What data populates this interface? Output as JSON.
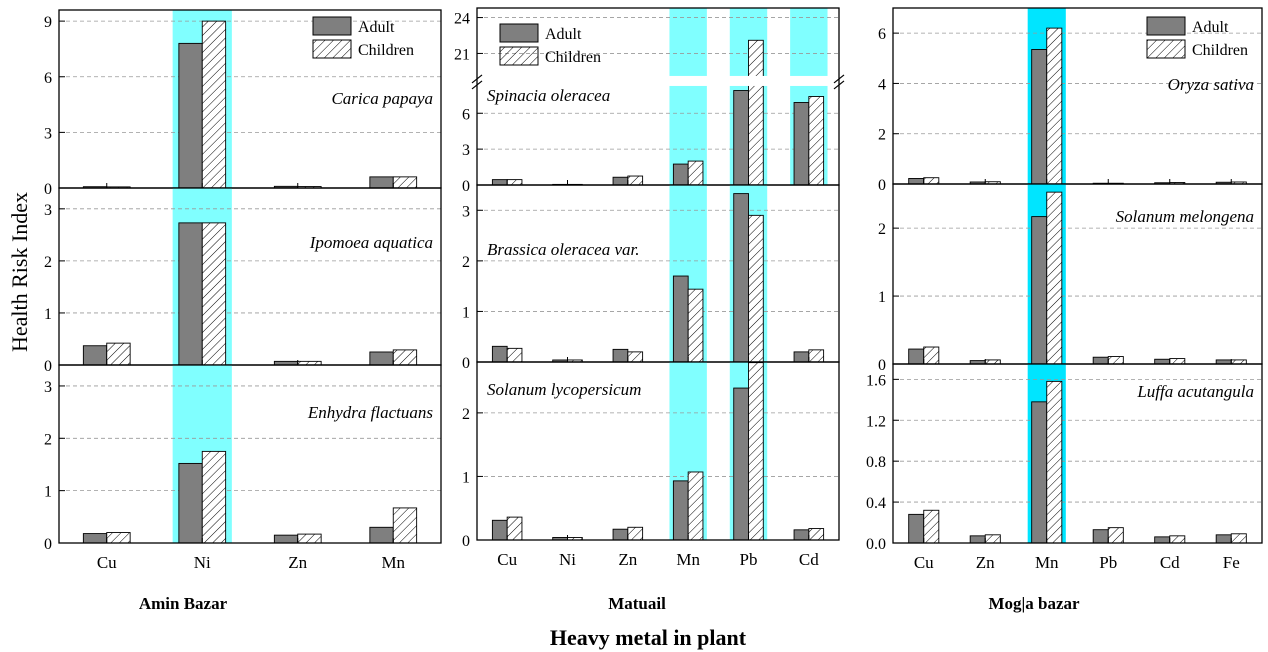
{
  "figure": {
    "ylabel": "Health Risk Index",
    "xlabel": "Heavy metal in plant",
    "legend": [
      "Adult",
      "Children"
    ]
  },
  "colors": {
    "adult": "#7f7f7f",
    "children_hatch": "#000000",
    "highlight": "#80ffff",
    "highlight_strong": "#00e5ff",
    "grid": "#999999"
  },
  "chart_data": [
    {
      "type": "bar",
      "group": "Amin Bazar",
      "plant": "Carica papaya",
      "categories": [
        "Cu",
        "Ni",
        "Zn",
        "Mn"
      ],
      "series": [
        {
          "name": "Adult",
          "values": [
            0.07,
            7.8,
            0.09,
            0.6
          ]
        },
        {
          "name": "Children",
          "values": [
            0.06,
            9.0,
            0.08,
            0.6
          ]
        }
      ],
      "highlight": [
        "Ni"
      ],
      "ylim": [
        0,
        9.6
      ],
      "yticks": [
        0,
        3,
        6,
        9
      ],
      "legend": true
    },
    {
      "type": "bar",
      "group": "Amin Bazar",
      "plant": "Ipomoea aquatica",
      "categories": [
        "Cu",
        "Ni",
        "Zn",
        "Mn"
      ],
      "series": [
        {
          "name": "Adult",
          "values": [
            0.37,
            2.73,
            0.07,
            0.25
          ]
        },
        {
          "name": "Children",
          "values": [
            0.42,
            2.73,
            0.07,
            0.29
          ]
        }
      ],
      "highlight": [
        "Ni"
      ],
      "ylim": [
        0,
        3.4
      ],
      "yticks": [
        0,
        1,
        2,
        3
      ]
    },
    {
      "type": "bar",
      "group": "Amin Bazar",
      "plant": "Enhydra flactuans",
      "categories": [
        "Cu",
        "Ni",
        "Zn",
        "Mn"
      ],
      "series": [
        {
          "name": "Adult",
          "values": [
            0.18,
            1.52,
            0.15,
            0.3
          ]
        },
        {
          "name": "Children",
          "values": [
            0.2,
            1.75,
            0.17,
            0.67
          ]
        }
      ],
      "highlight": [
        "Ni"
      ],
      "ylim": [
        0,
        3.4
      ],
      "yticks": [
        0,
        1,
        2,
        3
      ]
    },
    {
      "type": "bar",
      "group": "Matuail",
      "plant": "Spinacia oleracea",
      "categories": [
        "Cu",
        "Ni",
        "Zn",
        "Mn",
        "Pb",
        "Cd"
      ],
      "series": [
        {
          "name": "Adult",
          "values": [
            0.45,
            0.05,
            0.65,
            1.75,
            7.9,
            6.9
          ]
        },
        {
          "name": "Children",
          "values": [
            0.45,
            0.05,
            0.75,
            2.0,
            22.1,
            7.4
          ]
        }
      ],
      "highlight": [
        "Mn",
        "Pb",
        "Cd"
      ],
      "ylim": [
        0,
        24.8
      ],
      "yticks": [
        0,
        3,
        6,
        21,
        24
      ],
      "axis_break": [
        8.2,
        19.2
      ],
      "legend": true
    },
    {
      "type": "bar",
      "group": "Matuail",
      "plant": "Brassica oleracea var.",
      "categories": [
        "Cu",
        "Ni",
        "Zn",
        "Mn",
        "Pb",
        "Cd"
      ],
      "series": [
        {
          "name": "Adult",
          "values": [
            0.31,
            0.04,
            0.25,
            1.7,
            3.33,
            0.2
          ]
        },
        {
          "name": "Children",
          "values": [
            0.27,
            0.04,
            0.2,
            1.44,
            2.9,
            0.24
          ]
        }
      ],
      "highlight": [
        "Mn",
        "Pb"
      ],
      "ylim": [
        0,
        3.5
      ],
      "yticks": [
        0,
        1,
        2,
        3
      ]
    },
    {
      "type": "bar",
      "group": "Matuail",
      "plant": "Solanum lycopersicum",
      "categories": [
        "Cu",
        "Ni",
        "Zn",
        "Mn",
        "Pb",
        "Cd"
      ],
      "series": [
        {
          "name": "Adult",
          "values": [
            0.31,
            0.04,
            0.17,
            0.93,
            2.39,
            0.16
          ]
        },
        {
          "name": "Children",
          "values": [
            0.36,
            0.04,
            0.2,
            1.07,
            2.79,
            0.18
          ]
        }
      ],
      "highlight": [
        "Mn",
        "Pb"
      ],
      "ylim": [
        0,
        2.8
      ],
      "yticks": [
        0,
        1,
        2
      ],
      "xticks_shown": true
    },
    {
      "type": "bar",
      "group": "Mog|a bazar",
      "plant": "Oryza sativa",
      "categories": [
        "Cu",
        "Zn",
        "Mn",
        "Pb",
        "Cd",
        "Fe"
      ],
      "series": [
        {
          "name": "Adult",
          "values": [
            0.22,
            0.08,
            5.35,
            0.03,
            0.05,
            0.07
          ]
        },
        {
          "name": "Children",
          "values": [
            0.25,
            0.09,
            6.2,
            0.03,
            0.06,
            0.08
          ]
        }
      ],
      "highlight": [
        "Mn"
      ],
      "ylim": [
        0,
        7.0
      ],
      "yticks": [
        0,
        2,
        4,
        6
      ],
      "legend": true
    },
    {
      "type": "bar",
      "group": "Mog|a bazar",
      "plant": "Solanum melongena",
      "categories": [
        "Cu",
        "Zn",
        "Mn",
        "Pb",
        "Cd",
        "Fe"
      ],
      "series": [
        {
          "name": "Adult",
          "values": [
            0.22,
            0.05,
            2.17,
            0.1,
            0.07,
            0.06
          ]
        },
        {
          "name": "Children",
          "values": [
            0.25,
            0.06,
            2.53,
            0.11,
            0.08,
            0.06
          ]
        }
      ],
      "highlight": [
        "Mn"
      ],
      "ylim": [
        0,
        2.65
      ],
      "yticks": [
        0,
        1,
        2
      ]
    },
    {
      "type": "bar",
      "group": "Mog|a bazar",
      "plant": "Luffa acutangula",
      "categories": [
        "Cu",
        "Zn",
        "Mn",
        "Pb",
        "Cd",
        "Fe"
      ],
      "series": [
        {
          "name": "Adult",
          "values": [
            0.28,
            0.07,
            1.38,
            0.13,
            0.06,
            0.08
          ]
        },
        {
          "name": "Children",
          "values": [
            0.32,
            0.08,
            1.58,
            0.15,
            0.07,
            0.09
          ]
        }
      ],
      "highlight": [
        "Mn"
      ],
      "ylim": [
        0,
        1.75
      ],
      "yticks": [
        0.0,
        0.4,
        0.8,
        1.2,
        1.6
      ]
    }
  ]
}
